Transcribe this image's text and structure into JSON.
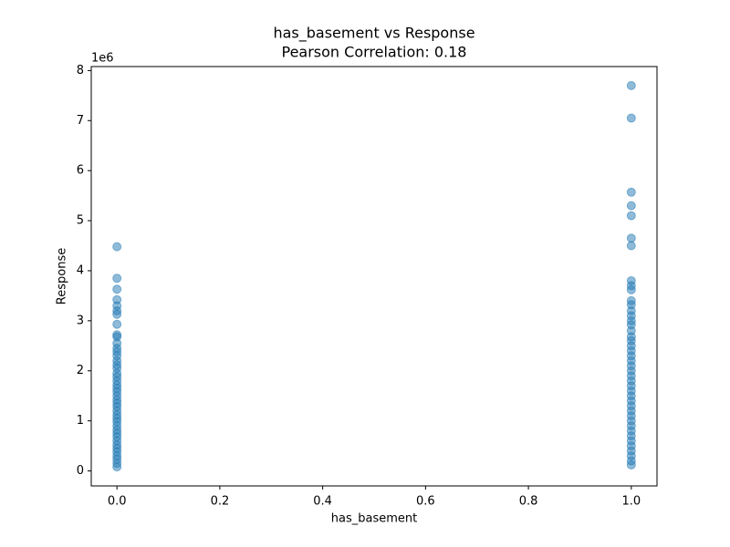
{
  "chart_data": {
    "type": "scatter",
    "title": "has_basement vs Response",
    "subtitle": "Pearson Correlation: 0.18",
    "xlabel": "has_basement",
    "ylabel": "Response",
    "y_offset_label": "1e6",
    "color": "#1f77b4",
    "alpha": 0.5,
    "xlim": [
      -0.05,
      1.05
    ],
    "ylim": [
      -300000,
      8080000
    ],
    "xticks": [
      {
        "value": 0,
        "label": "0.0"
      },
      0.2,
      0.4,
      0.6,
      0.8,
      {
        "value": 1,
        "label": "1.0"
      }
    ],
    "yticks": [
      {
        "value": 0,
        "label": "0"
      },
      {
        "value": 1000000,
        "label": "1"
      },
      {
        "value": 2000000,
        "label": "2"
      },
      {
        "value": 3000000,
        "label": "3"
      },
      {
        "value": 4000000,
        "label": "4"
      },
      {
        "value": 5000000,
        "label": "5"
      },
      {
        "value": 6000000,
        "label": "6"
      },
      {
        "value": 7000000,
        "label": "7"
      },
      {
        "value": 8000000,
        "label": "8"
      }
    ],
    "x": [
      0,
      0,
      0,
      0,
      0,
      0,
      0,
      0,
      0,
      0,
      0,
      0,
      0,
      0,
      0,
      0,
      0,
      0,
      0,
      0,
      0,
      0,
      0,
      0,
      0,
      0,
      0,
      0,
      0,
      0,
      0,
      0,
      0,
      0,
      0,
      0,
      0,
      0,
      0,
      0,
      0,
      0,
      0,
      1,
      1,
      1,
      1,
      1,
      1,
      1,
      1,
      1,
      1,
      1,
      1,
      1,
      1,
      1,
      1,
      1,
      1,
      1,
      1,
      1,
      1,
      1,
      1,
      1,
      1,
      1,
      1,
      1,
      1,
      1,
      1,
      1,
      1,
      1,
      1,
      1,
      1,
      1,
      1,
      1,
      1,
      1,
      1
    ],
    "values": [
      4480000,
      3850000,
      3630000,
      3420000,
      3300000,
      3200000,
      3130000,
      2930000,
      2720000,
      2680000,
      2550000,
      2450000,
      2380000,
      2300000,
      2200000,
      2120000,
      2050000,
      1950000,
      1880000,
      1800000,
      1720000,
      1650000,
      1580000,
      1500000,
      1420000,
      1350000,
      1280000,
      1200000,
      1120000,
      1050000,
      980000,
      900000,
      820000,
      750000,
      680000,
      600000,
      520000,
      450000,
      380000,
      300000,
      230000,
      150000,
      80000,
      7700000,
      7050000,
      5570000,
      5300000,
      5100000,
      4650000,
      4500000,
      3800000,
      3700000,
      3620000,
      3400000,
      3320000,
      3200000,
      3100000,
      3000000,
      2920000,
      2800000,
      2680000,
      2600000,
      2500000,
      2400000,
      2300000,
      2200000,
      2100000,
      2000000,
      1900000,
      1800000,
      1700000,
      1600000,
      1500000,
      1400000,
      1300000,
      1200000,
      1100000,
      1000000,
      900000,
      800000,
      700000,
      600000,
      500000,
      400000,
      300000,
      200000,
      120000
    ]
  }
}
